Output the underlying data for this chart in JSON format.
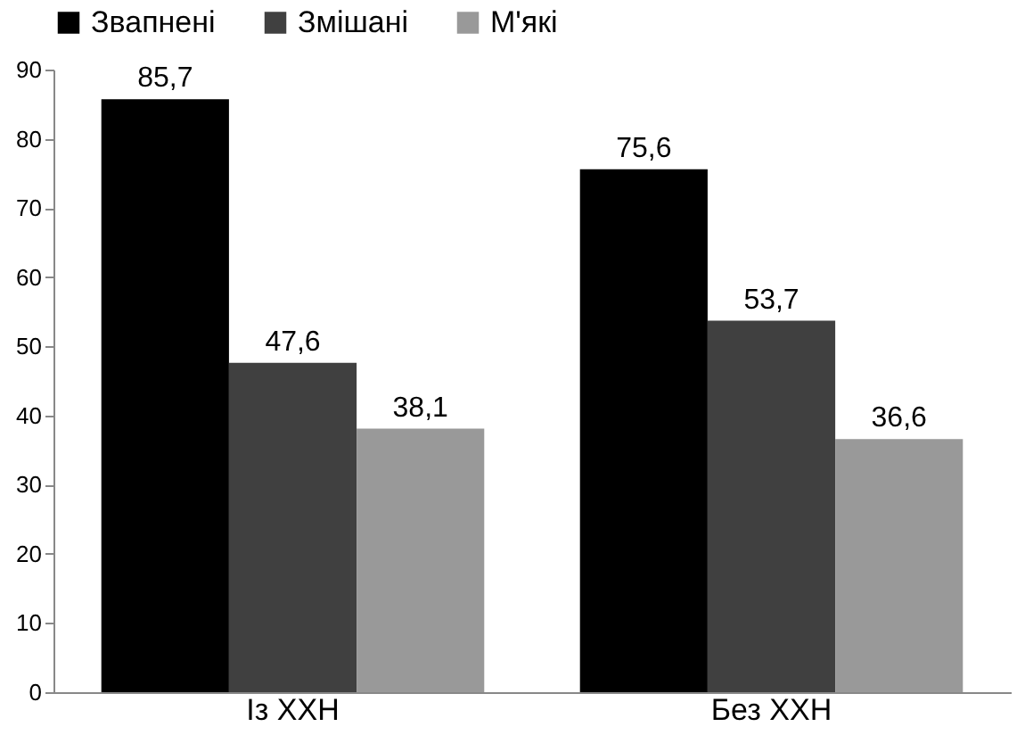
{
  "chart_data": {
    "type": "bar",
    "categories": [
      "Із ХХН",
      "Без ХХН"
    ],
    "series": [
      {
        "name": "Звапнені",
        "color": "#000000",
        "values": [
          85.7,
          75.6
        ],
        "value_labels": [
          "85,7",
          "75,6"
        ]
      },
      {
        "name": "Змішані",
        "color": "#404040",
        "values": [
          47.6,
          53.7
        ],
        "value_labels": [
          "47,6",
          "53,7"
        ]
      },
      {
        "name": "М'які",
        "color": "#999999",
        "values": [
          38.1,
          36.6
        ],
        "value_labels": [
          "38,1",
          "36,6"
        ]
      }
    ],
    "ylim": [
      0,
      90
    ],
    "yticks": [
      0,
      10,
      20,
      30,
      40,
      50,
      60,
      70,
      80,
      90
    ],
    "grid": false,
    "legend": "top"
  }
}
